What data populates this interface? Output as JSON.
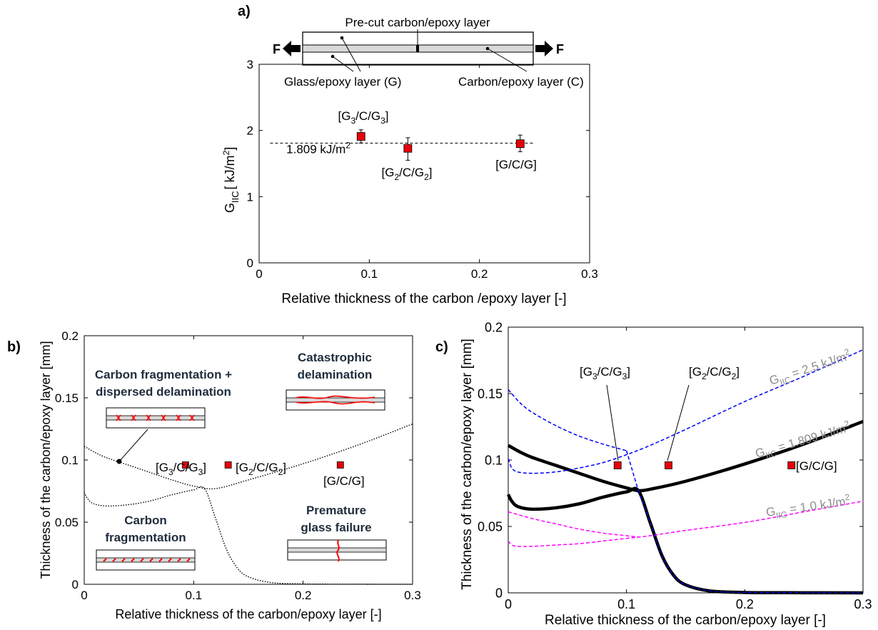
{
  "panels": {
    "a": {
      "tag": "a)",
      "diagram": {
        "force_left": "F",
        "force_right": "F",
        "precut_label": "Pre-cut carbon/epoxy layer",
        "glass_label": "Glass/epoxy layer (G)",
        "carbon_label": "Carbon/epoxy layer (C)"
      },
      "ref_label": "1.809 kJ/m",
      "ref_label_sup": "2",
      "ylabel_main": "G",
      "ylabel_sub": "IIC",
      "ylabel_unit": "[ kJ/m",
      "ylabel_sup": "2",
      "ylabel_close": "]"
    },
    "b": {
      "tag": "b)",
      "regions": {
        "frag_dispersed_1": "Carbon fragmentation +",
        "frag_dispersed_2": "dispersed delamination",
        "catastrophic_1": "Catastrophic",
        "catastrophic_2": "delamination",
        "frag_1": "Carbon",
        "frag_2": "fragmentation",
        "premature_1": "Premature",
        "premature_2": "glass failure"
      }
    },
    "c": {
      "tag": "c)",
      "curve_labels": {
        "g25_main": "G",
        "g25_sub": "IIC",
        "g25_val": " = 2.5 kJ/m",
        "g25_sup": "2",
        "g1809_main": "G",
        "g1809_sub": "IIC",
        "g1809_val": " = 1.809 kJ/m",
        "g1809_sup": "2",
        "g10_main": "G",
        "g10_sub": "IIC",
        "g10_val": " = 1.0 kJ/m",
        "g10_sup": "2"
      }
    }
  },
  "colors": {
    "marker": "#e8000b",
    "blue_dash": "#0000ff",
    "magenta_dash": "#ff00ff",
    "label_gray": "#8c8c8c",
    "region_text": "#1f2d3d",
    "laminate_fill": "#d9d9d9",
    "crack_red": "#ff0000"
  },
  "chart_data": [
    {
      "id": "a",
      "type": "scatter",
      "xlabel": "Relative thickness of the carbon /epoxy layer [-]",
      "xlim": [
        0,
        0.3
      ],
      "ylim": [
        0,
        3
      ],
      "xticks": [
        "0",
        "0.1",
        "0.2",
        "0.3"
      ],
      "yticks": [
        "0",
        "1",
        "2",
        "3"
      ],
      "reference_line": 1.809,
      "points": [
        {
          "label_main": "[G",
          "label_sub1": "3",
          "label_mid": "/C/G",
          "label_sub2": "3",
          "label_end": "]",
          "x": 0.0925,
          "y": 1.91,
          "err_low": 1.81,
          "err_high": 2.01
        },
        {
          "label_main": "[G",
          "label_sub1": "2",
          "label_mid": "/C/G",
          "label_sub2": "2",
          "label_end": "]",
          "x": 0.135,
          "y": 1.73,
          "err_low": 1.55,
          "err_high": 1.89
        },
        {
          "label_main": "[G/C/G]",
          "label_sub1": "",
          "label_mid": "",
          "label_sub2": "",
          "label_end": "",
          "x": 0.237,
          "y": 1.8,
          "err_low": 1.68,
          "err_high": 1.93
        }
      ]
    },
    {
      "id": "b",
      "type": "scatter",
      "xlabel": "Relative thickness of the carbon/epoxy layer [-]",
      "ylabel": "Thickness of the carbon/epoxy layer [mm]",
      "xlim": [
        0,
        0.3
      ],
      "ylim": [
        0,
        0.2
      ],
      "xticks": [
        "0",
        "0.1",
        "0.2",
        "0.3"
      ],
      "yticks": [
        "0",
        "0.05",
        "0.1",
        "0.15",
        "0.2"
      ],
      "points": [
        {
          "label_main": "[G",
          "label_sub1": "3",
          "label_mid": "/C/G",
          "label_sub2": "3",
          "label_end": "]",
          "x": 0.0925,
          "y": 0.096
        },
        {
          "label_main": "[G",
          "label_sub1": "2",
          "label_mid": "/C/G",
          "label_sub2": "2",
          "label_end": "]",
          "x": 0.1315,
          "y": 0.096
        },
        {
          "label_main": "[G/C/G]",
          "label_sub1": "",
          "label_mid": "",
          "label_sub2": "",
          "label_end": "",
          "x": 0.234,
          "y": 0.096
        }
      ],
      "boundary_lines": [
        {
          "name": "delamination_boundary",
          "x": [
            0,
            0.01,
            0.02,
            0.04,
            0.06,
            0.08,
            0.1,
            0.12,
            0.15,
            0.2,
            0.25,
            0.3
          ],
          "y": [
            0.111,
            0.106,
            0.102,
            0.096,
            0.09,
            0.084,
            0.079,
            0.077,
            0.084,
            0.097,
            0.112,
            0.129
          ]
        },
        {
          "name": "fragmentation_boundary",
          "x": [
            0,
            0.003,
            0.008,
            0.02,
            0.04,
            0.06,
            0.08,
            0.1,
            0.11,
            0.12,
            0.13,
            0.14,
            0.15,
            0.17,
            0.2,
            0.25,
            0.3
          ],
          "y": [
            0.074,
            0.069,
            0.065,
            0.063,
            0.064,
            0.067,
            0.072,
            0.076,
            0.077,
            0.053,
            0.028,
            0.013,
            0.006,
            0.0015,
            0.0003,
            0.0001,
            0.0
          ]
        }
      ]
    },
    {
      "id": "c",
      "type": "line",
      "xlabel": "Relative thickness of the carbon/epoxy layer [-]",
      "ylabel": "Thickness of the carbon/epoxy layer [mm]",
      "xlim": [
        0,
        0.3
      ],
      "ylim": [
        0,
        0.2
      ],
      "xticks": [
        "0",
        "0.1",
        "0.2",
        "0.3"
      ],
      "yticks": [
        "0",
        "0.05",
        "0.1",
        "0.15",
        "0.2"
      ],
      "series": [
        {
          "style": "black",
          "x": [
            0,
            0.01,
            0.02,
            0.04,
            0.06,
            0.08,
            0.1,
            0.11,
            0.12,
            0.15,
            0.2,
            0.25,
            0.3
          ],
          "y": [
            0.111,
            0.106,
            0.102,
            0.096,
            0.09,
            0.084,
            0.079,
            0.077,
            0.078,
            0.084,
            0.097,
            0.112,
            0.129
          ]
        },
        {
          "style": "black",
          "x": [
            0,
            0.003,
            0.008,
            0.02,
            0.04,
            0.06,
            0.08,
            0.1,
            0.11,
            0.12,
            0.13,
            0.14,
            0.15,
            0.17,
            0.2,
            0.25,
            0.3
          ],
          "y": [
            0.074,
            0.069,
            0.065,
            0.063,
            0.064,
            0.067,
            0.072,
            0.076,
            0.077,
            0.053,
            0.028,
            0.013,
            0.006,
            0.0015,
            0.0003,
            0.0001,
            0.0
          ]
        },
        {
          "style": "blue",
          "x": [
            0,
            0.01,
            0.02,
            0.04,
            0.06,
            0.08,
            0.1
          ],
          "y": [
            0.153,
            0.143,
            0.136,
            0.126,
            0.118,
            0.112,
            0.107
          ]
        },
        {
          "style": "blue",
          "x": [
            0,
            0.003,
            0.008,
            0.02,
            0.04,
            0.06,
            0.08,
            0.1,
            0.12,
            0.15,
            0.2,
            0.25,
            0.3
          ],
          "y": [
            0.101,
            0.094,
            0.091,
            0.09,
            0.091,
            0.094,
            0.098,
            0.104,
            0.111,
            0.123,
            0.144,
            0.163,
            0.183
          ]
        },
        {
          "style": "blue",
          "x": [
            0.1,
            0.11
          ],
          "y": [
            0.107,
            0.077
          ]
        },
        {
          "style": "magenta",
          "x": [
            0,
            0.02,
            0.04,
            0.06,
            0.08,
            0.1,
            0.11
          ],
          "y": [
            0.061,
            0.056,
            0.052,
            0.048,
            0.045,
            0.043,
            0.042
          ]
        },
        {
          "style": "magenta",
          "x": [
            0,
            0.003,
            0.008,
            0.02,
            0.04,
            0.06,
            0.08,
            0.1,
            0.12,
            0.15,
            0.2,
            0.25,
            0.3
          ],
          "y": [
            0.039,
            0.036,
            0.035,
            0.035,
            0.036,
            0.037,
            0.039,
            0.041,
            0.043,
            0.047,
            0.053,
            0.061,
            0.069
          ]
        },
        {
          "style": "blue_overlay",
          "x": [
            0.11,
            0.12,
            0.13,
            0.14,
            0.15,
            0.17,
            0.2,
            0.25,
            0.3
          ],
          "y": [
            0.077,
            0.053,
            0.028,
            0.013,
            0.006,
            0.0015,
            0.0003,
            0.0001,
            0.0
          ]
        }
      ],
      "points": [
        {
          "label_main": "[G",
          "label_sub1": "3",
          "label_mid": "/C/G",
          "label_sub2": "3",
          "label_end": "]",
          "x": 0.0925,
          "y": 0.096
        },
        {
          "label_main": "[G",
          "label_sub1": "2",
          "label_mid": "/C/G",
          "label_sub2": "2",
          "label_end": "]",
          "x": 0.1355,
          "y": 0.096
        },
        {
          "label_main": "[G/C/G]",
          "label_sub1": "",
          "label_mid": "",
          "label_sub2": "",
          "label_end": "",
          "x": 0.2395,
          "y": 0.096
        }
      ]
    }
  ]
}
